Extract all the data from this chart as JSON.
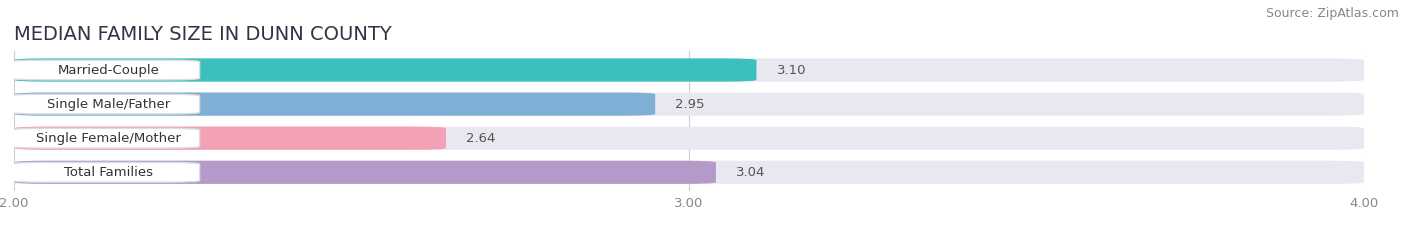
{
  "title": "MEDIAN FAMILY SIZE IN DUNN COUNTY",
  "source": "Source: ZipAtlas.com",
  "categories": [
    "Married-Couple",
    "Single Male/Father",
    "Single Female/Mother",
    "Total Families"
  ],
  "values": [
    3.1,
    2.95,
    2.64,
    3.04
  ],
  "colors": [
    "#3bbfbf",
    "#7fafd4",
    "#f4a0b5",
    "#b59ac9"
  ],
  "xlim": [
    2.0,
    4.0
  ],
  "xticks": [
    2.0,
    3.0,
    4.0
  ],
  "xtick_labels": [
    "2.00",
    "3.00",
    "4.00"
  ],
  "background_color": "#f5f5f8",
  "bar_background": "#e8e8f0",
  "title_fontsize": 14,
  "label_fontsize": 9.5,
  "value_fontsize": 9.5,
  "source_fontsize": 9
}
